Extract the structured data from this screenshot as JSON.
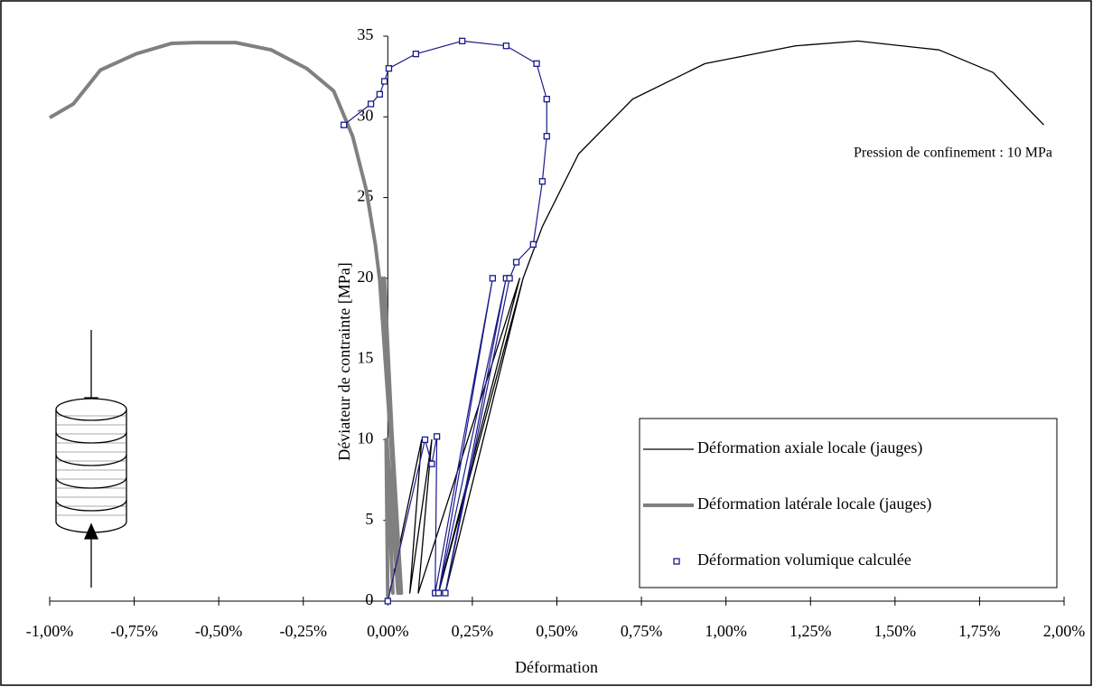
{
  "chart_data": {
    "type": "line",
    "x_label": "Déformation",
    "y_label": "Déviateur de contrainte [MPa]",
    "annotation": "Pression de confinement : 10 MPa",
    "xlim": [
      -1.0,
      2.0
    ],
    "ylim": [
      0,
      35
    ],
    "xticks": [
      {
        "value": -1.0,
        "label": "-1,00%"
      },
      {
        "value": -0.75,
        "label": "-0,75%"
      },
      {
        "value": -0.5,
        "label": "-0,50%"
      },
      {
        "value": -0.25,
        "label": "-0,25%"
      },
      {
        "value": 0,
        "label": "0,00%"
      },
      {
        "value": 0.25,
        "label": "0,25%"
      },
      {
        "value": 0.5,
        "label": "0,50%"
      },
      {
        "value": 0.75,
        "label": "0,75%"
      },
      {
        "value": 1.0,
        "label": "1,00%"
      },
      {
        "value": 1.25,
        "label": "1,25%"
      },
      {
        "value": 1.5,
        "label": "1,50%"
      },
      {
        "value": 1.75,
        "label": "1,75%"
      },
      {
        "value": 2.0,
        "label": "2,00%"
      }
    ],
    "yticks": [
      0,
      5,
      10,
      15,
      20,
      25,
      30,
      35
    ],
    "legend": "lower right",
    "series": [
      {
        "name": "Déformation axiale locale (jauges)",
        "color": "#000000",
        "x": [
          0,
          0.1,
          0.065,
          0.13,
          0.09,
          0.39,
          0.15,
          0.4,
          0.17,
          0.4,
          0.457,
          0.564,
          0.724,
          0.938,
          1.205,
          1.39,
          1.63,
          1.79,
          1.94
        ],
        "values": [
          0,
          10,
          0.5,
          10,
          0.5,
          20,
          0.5,
          20,
          0.5,
          20,
          23.2,
          27.7,
          31.1,
          33.3,
          34.4,
          34.7,
          34.15,
          32.75,
          29.5
        ]
      },
      {
        "name": "Déformation latérale locale (jauges)",
        "color": "#808080",
        "x": [
          0,
          -0.005,
          0.015,
          -0.003,
          0.03,
          -0.01,
          0.035,
          -0.015,
          0.04,
          -0.024,
          -0.037,
          -0.064,
          -0.104,
          -0.16,
          -0.24,
          -0.345,
          -0.45,
          -0.57,
          -0.64,
          -0.745,
          -0.85,
          -0.93,
          -1.0
        ],
        "values": [
          0,
          10,
          0.5,
          10,
          0.5,
          20,
          0.5,
          20,
          0.5,
          19.9,
          22.1,
          25.5,
          28.8,
          31.6,
          33.0,
          34.15,
          34.6,
          34.6,
          34.55,
          33.9,
          32.9,
          30.8,
          29.95
        ]
      },
      {
        "name": "Déformation volumique calculée",
        "color": "#1a1a8c",
        "marker": "square",
        "x": [
          0,
          0.11,
          0.13,
          0.145,
          0.14,
          0.31,
          0.15,
          0.35,
          0.17,
          0.36,
          0.38,
          0.43,
          0.457,
          0.47,
          0.47,
          0.44,
          0.35,
          0.22,
          0.083,
          0.003,
          -0.01,
          -0.024,
          -0.05,
          -0.13
        ],
        "values": [
          0,
          10,
          8.5,
          10.2,
          0.5,
          20,
          0.5,
          20,
          0.5,
          20,
          21,
          22.1,
          26,
          28.8,
          31.1,
          33.3,
          34.4,
          34.7,
          33.9,
          33.0,
          32.2,
          31.4,
          30.8,
          29.5
        ]
      }
    ]
  }
}
